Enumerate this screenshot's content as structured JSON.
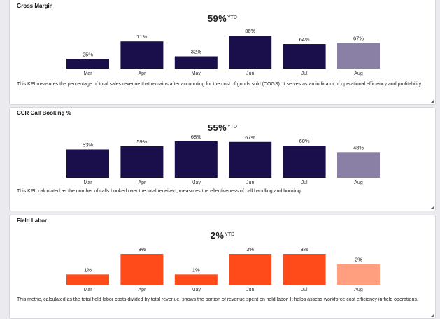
{
  "cards": [
    {
      "title": "Gross Margin",
      "kpi_value": "59%",
      "kpi_suffix": "YTD",
      "description": "This KPI measures the percentage of total sales revenue that remains after accounting for the cost of goods sold (COGS). It serves as an indicator of operational efficiency and profitability.",
      "bar_color": "#1a0f4a",
      "last_bar_color": "#8a80a6",
      "chart_data": {
        "type": "bar",
        "categories": [
          "Mar",
          "Apr",
          "May",
          "Jun",
          "Jul",
          "Aug"
        ],
        "values": [
          25,
          71,
          32,
          86,
          64,
          67
        ],
        "labels": [
          "25%",
          "71%",
          "32%",
          "86%",
          "64%",
          "67%"
        ],
        "ylim": [
          0,
          100
        ],
        "grid": false
      }
    },
    {
      "title": "CCR Call Booking %",
      "kpi_value": "55%",
      "kpi_suffix": "YTD",
      "description": "This KPI, calculated as the number of calls booked over the total received, measures the effectiveness of call handling and booking.",
      "bar_color": "#1a0f4a",
      "last_bar_color": "#8a80a6",
      "chart_data": {
        "type": "bar",
        "categories": [
          "Mar",
          "Apr",
          "May",
          "Jun",
          "Jul",
          "Aug"
        ],
        "values": [
          53,
          59,
          68,
          67,
          60,
          48
        ],
        "labels": [
          "53%",
          "59%",
          "68%",
          "67%",
          "60%",
          "48%"
        ],
        "ylim": [
          0,
          100
        ],
        "grid": false
      }
    },
    {
      "title": "Field Labor",
      "kpi_value": "2%",
      "kpi_suffix": "YTD",
      "description": "This metric, calculated as the total field labor costs divided by total revenue, shows the portion of revenue spent on field labor. It helps assess workforce cost efficiency in field operations.",
      "bar_color": "#ff4a1a",
      "last_bar_color": "#ff9f80",
      "chart_data": {
        "type": "bar",
        "categories": [
          "Mar",
          "Apr",
          "May",
          "Jun",
          "Jul",
          "Aug"
        ],
        "values": [
          1,
          3,
          1,
          3,
          3,
          2
        ],
        "labels": [
          "1%",
          "3%",
          "1%",
          "3%",
          "3%",
          "2%"
        ],
        "ylim": [
          0,
          3.5
        ],
        "grid": false
      }
    }
  ]
}
